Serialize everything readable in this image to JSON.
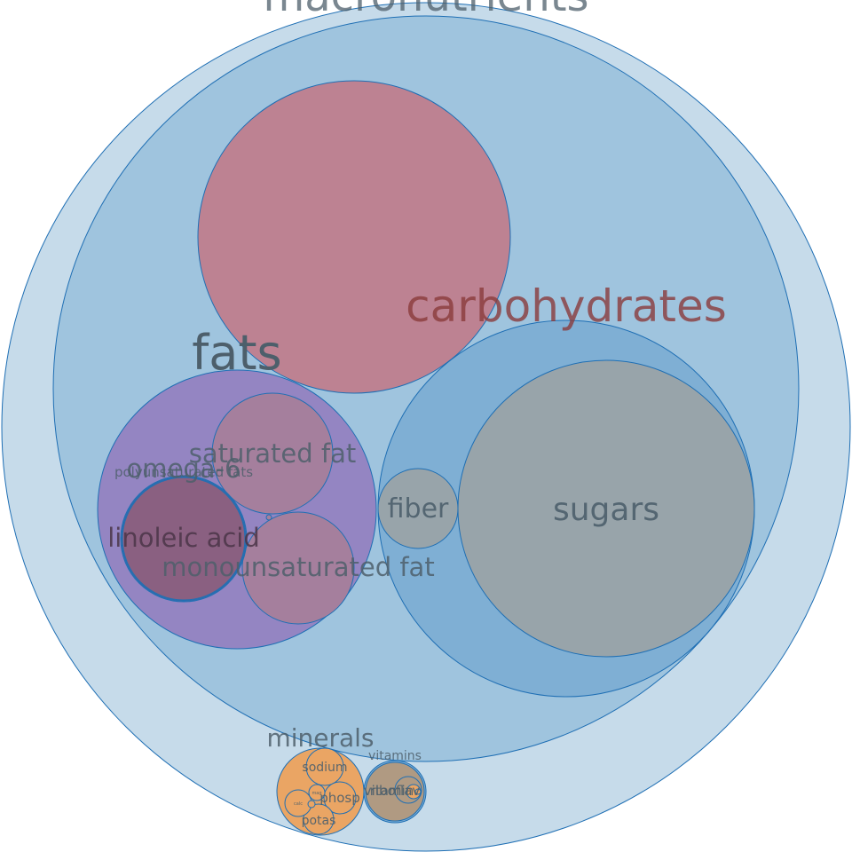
{
  "chart_data": {
    "type": "bubble-pack",
    "root": {
      "label": "macronutrients",
      "children": [
        {
          "label": "carbohydrates",
          "children": [
            {
              "label": "",
              "note": "large unlabeled circle"
            },
            {
              "label": "fats",
              "children": [
                {
                  "label": "saturated fat"
                },
                {
                  "label": "monounsaturated fat"
                },
                {
                  "label": "polyunsaturated fats",
                  "children": [
                    {
                      "label": "omega-6",
                      "children": [
                        {
                          "label": "linoleic acid"
                        }
                      ]
                    }
                  ]
                }
              ]
            },
            {
              "label": "",
              "children": [
                {
                  "label": "fiber"
                },
                {
                  "label": "sugars"
                }
              ]
            }
          ]
        },
        {
          "label": "minerals",
          "children": [
            {
              "label": "sodium"
            },
            {
              "label": "phosp"
            },
            {
              "label": "potas"
            },
            {
              "label": "calc"
            },
            {
              "label": "mag"
            }
          ]
        },
        {
          "label": "vitamins",
          "children": [
            {
              "label": "vitamin"
            },
            {
              "label": "riboflav"
            }
          ]
        }
      ]
    },
    "colors": {
      "outer_fill": "#c6dbea",
      "macro_fill": "#9fc4de",
      "group_fill": "#7fafd4",
      "stroke": "#1f6fb4",
      "pink": "#bd8292",
      "purple": "#9485c2",
      "mauve": "#a57f9d",
      "plum": "#8a5f80",
      "gray": "#98a4aa",
      "orange": "#eaa564",
      "tan": "#b09a82",
      "label_main": "#4d5f6b",
      "label_carbs": "#8a3b3b",
      "label_dark": "#4a3548"
    }
  }
}
